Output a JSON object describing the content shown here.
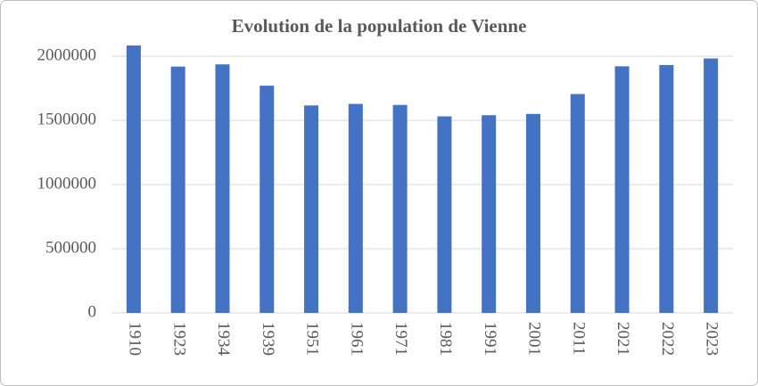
{
  "chart_data": {
    "type": "bar",
    "title": "Evolution de la population de Vienne",
    "categories": [
      "1910",
      "1923",
      "1934",
      "1939",
      "1951",
      "1961",
      "1971",
      "1981",
      "1991",
      "2001",
      "2011",
      "2021",
      "2022",
      "2023"
    ],
    "values": [
      2083000,
      1919000,
      1936000,
      1770000,
      1616000,
      1628000,
      1620000,
      1531000,
      1540000,
      1550000,
      1705000,
      1921000,
      1931000,
      1982000
    ],
    "color": "#4472c4",
    "ylim": [
      0,
      2100000
    ],
    "yticks": [
      0,
      500000,
      1000000,
      1500000,
      2000000
    ],
    "grid": true
  }
}
